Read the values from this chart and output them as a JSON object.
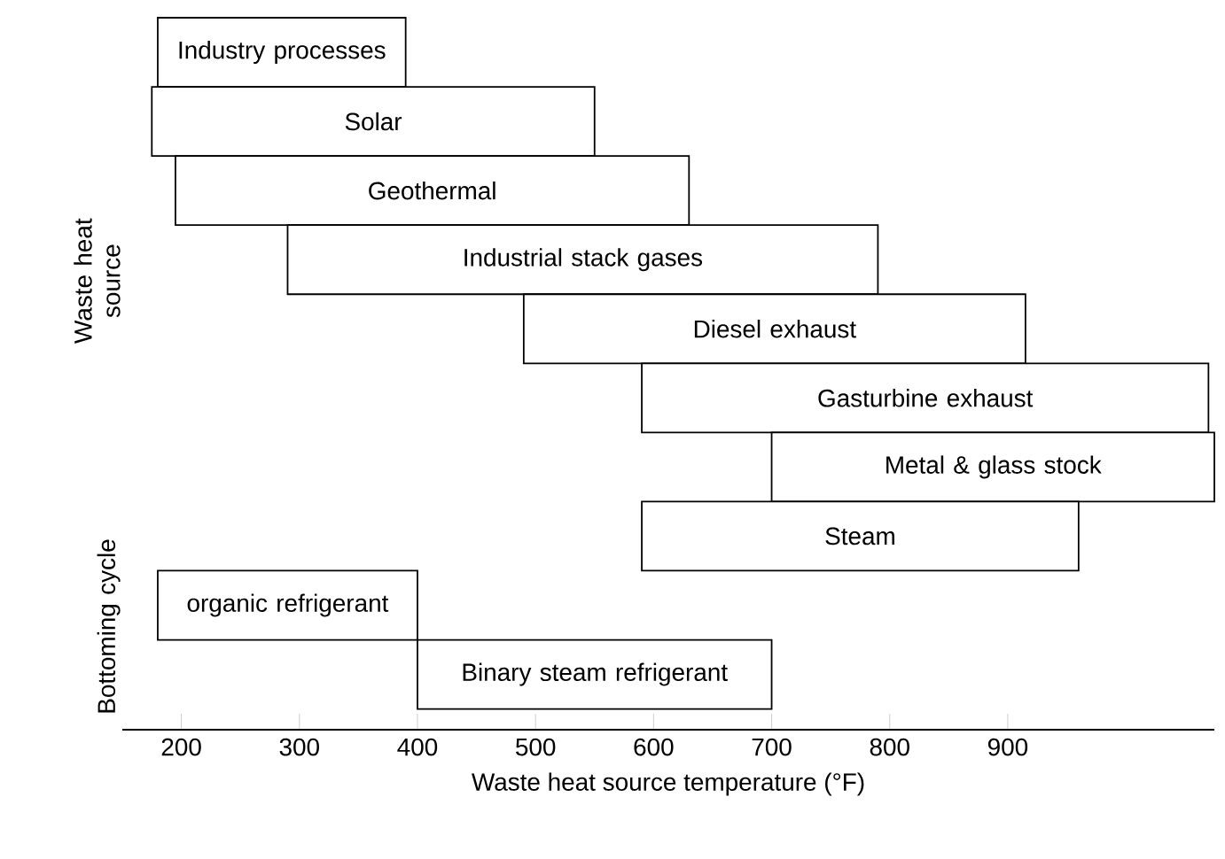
{
  "chart_data": {
    "type": "bar",
    "orientation": "horizontal",
    "xlabel": "Waste heat source temperature (°F)",
    "color": "#ffffff",
    "xlim": [
      150,
      1075
    ],
    "xticks": [
      200,
      300,
      400,
      500,
      600,
      700,
      800,
      900
    ],
    "annotations": [
      "Waste heat source",
      "Bottoming cycle"
    ],
    "categories": [
      "Industry processes",
      "Solar",
      "Geothermal",
      "Industrial stack gases",
      "Diesel exhaust",
      "Gasturbine exhaust",
      "Metal & glass stock",
      "Steam",
      "organic refrigerant",
      "Binary steam refrigerant"
    ],
    "base": [
      180,
      175,
      195,
      290,
      490,
      590,
      700,
      590,
      180,
      400
    ],
    "values": [
      210,
      375,
      435,
      500,
      425,
      480,
      375,
      370,
      220,
      300
    ]
  }
}
